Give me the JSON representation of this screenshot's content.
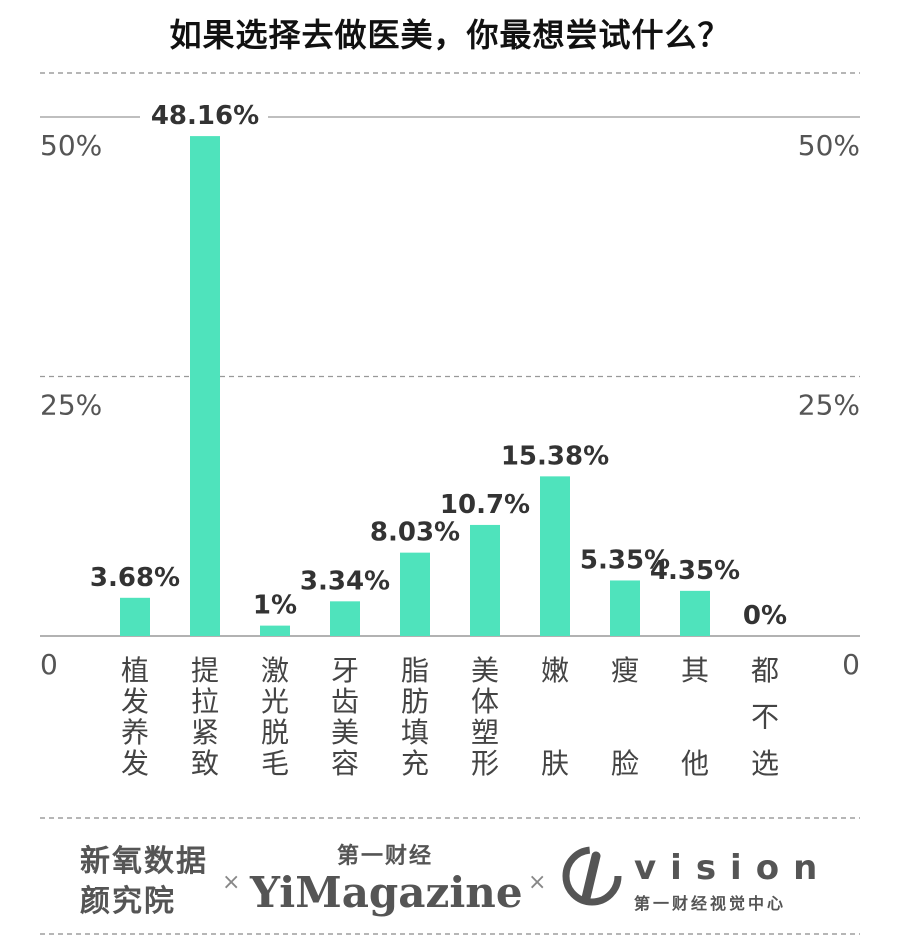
{
  "colors": {
    "bar": "#4fe3bc",
    "axis": "#999999",
    "text": "#555555"
  },
  "chart_data": {
    "type": "bar",
    "title": "如果选择去做医美，你最想尝试什么？",
    "categories": [
      "植发养发",
      "提拉紧致",
      "激光脱毛",
      "牙齿美容",
      "脂肪填充",
      "美体塑形",
      "嫩肤",
      "瘦脸",
      "其他",
      "都不选"
    ],
    "values": [
      3.68,
      48.16,
      1,
      3.34,
      8.03,
      10.7,
      15.38,
      5.35,
      4.35,
      0
    ],
    "value_labels": [
      "3.68%",
      "48.16%",
      "1%",
      "3.34%",
      "8.03%",
      "10.7%",
      "15.38%",
      "5.35%",
      "4.35%",
      "0%"
    ],
    "ylim": [
      0,
      50
    ],
    "yticks": [
      0,
      25,
      50
    ],
    "ytick_labels": [
      "0",
      "25%",
      "50%"
    ],
    "grid": true
  },
  "footer": {
    "logo1": "新氧数据颜究院",
    "separator": "×",
    "logo2_cn": "第一财经",
    "logo2_en": "YiMagazine",
    "logo3_en": "vision",
    "logo3_cn": "第一财经视觉中心"
  }
}
